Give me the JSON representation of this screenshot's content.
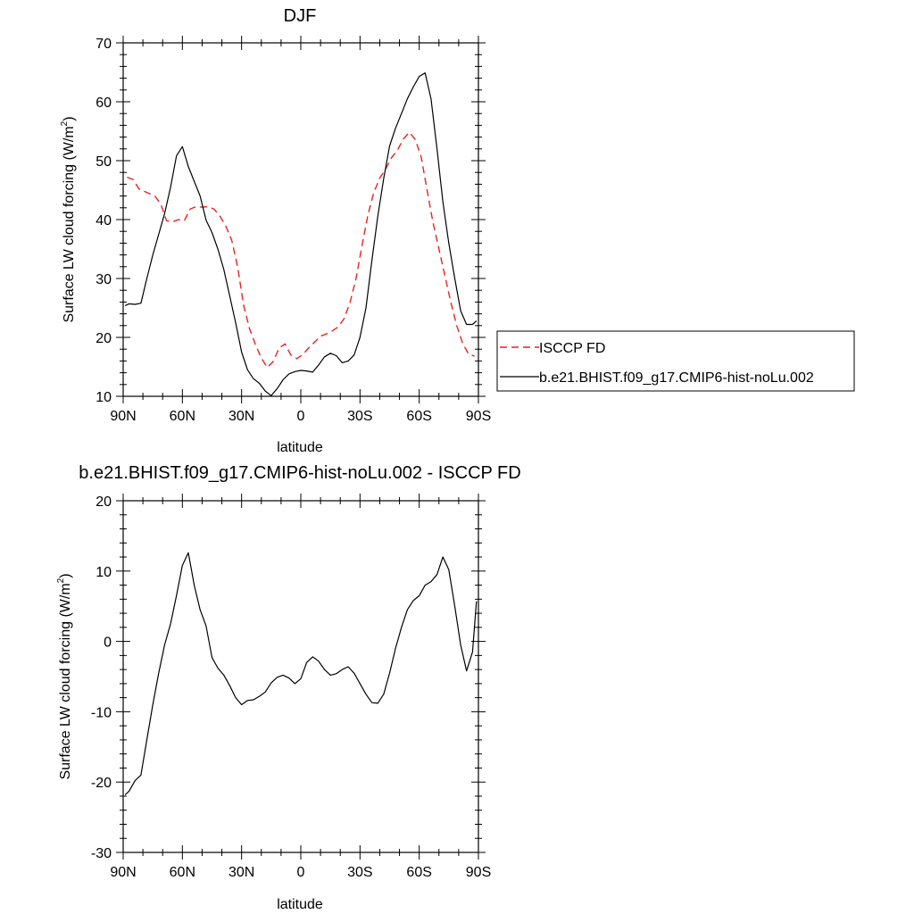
{
  "chart_data": [
    {
      "type": "line",
      "title": "DJF",
      "xlabel": "latitude",
      "ylabel_main": "Surface LW cloud forcing (W/m",
      "ylabel_sup": "2",
      "ylabel_close": ")",
      "xlim": [
        90,
        -90
      ],
      "ylim": [
        10,
        70
      ],
      "xticks": [
        90,
        60,
        30,
        0,
        -30,
        -60,
        -90
      ],
      "xtick_labels": [
        "90N",
        "60N",
        "30N",
        "0",
        "30S",
        "60S",
        "90S"
      ],
      "yticks": [
        10,
        20,
        30,
        40,
        50,
        60,
        70
      ],
      "ytick_labels": [
        "10",
        "20",
        "30",
        "40",
        "50",
        "60",
        "70"
      ],
      "legend_position": "right",
      "series": [
        {
          "name": "ISCCP FD",
          "color": "#e8231f",
          "dash": "dashed",
          "x": [
            88,
            85,
            82,
            78,
            74,
            71,
            68,
            65,
            62,
            59,
            56,
            53,
            50,
            47,
            44,
            41,
            38,
            35,
            32,
            29,
            26,
            23,
            20,
            17,
            14,
            11,
            8,
            5,
            2,
            -1,
            -4,
            -7,
            -10,
            -13,
            -16,
            -19,
            -22,
            -25,
            -28,
            -31,
            -34,
            -37,
            -40,
            -43,
            -46,
            -49,
            -52,
            -55,
            -58,
            -61,
            -64,
            -67,
            -70,
            -73,
            -76,
            -79,
            -82,
            -85,
            -88
          ],
          "values": [
            47.2,
            46.8,
            45.2,
            44.6,
            44.0,
            42.7,
            39.8,
            39.6,
            40.0,
            39.8,
            41.8,
            42.2,
            42.1,
            42.2,
            41.8,
            40.6,
            38.9,
            36.5,
            32.0,
            25.5,
            21.5,
            18.8,
            16.5,
            14.9,
            15.9,
            18.2,
            18.9,
            17.0,
            16.4,
            17.1,
            18.2,
            19.2,
            20.2,
            20.6,
            21.1,
            21.8,
            23.2,
            26.0,
            30.0,
            35.5,
            40.8,
            44.6,
            47.0,
            48.6,
            50.5,
            51.8,
            53.7,
            54.8,
            53.6,
            50.6,
            45.0,
            39.5,
            35.0,
            30.5,
            26.0,
            22.0,
            19.0,
            17.2,
            16.8
          ]
        },
        {
          "name": "b.e21.BHIST.f09_g17.CMIP6-hist-noLu.002",
          "color": "#000000",
          "dash": "solid",
          "x": [
            89,
            87,
            84,
            81,
            78,
            75,
            72,
            69,
            66,
            63,
            60,
            57,
            54,
            51,
            48,
            45,
            42,
            39,
            36,
            33,
            30,
            27,
            24,
            21,
            18,
            15,
            12,
            9,
            6,
            3,
            0,
            -3,
            -6,
            -9,
            -12,
            -15,
            -18,
            -21,
            -24,
            -27,
            -30,
            -33,
            -36,
            -39,
            -42,
            -45,
            -48,
            -51,
            -54,
            -57,
            -60,
            -63,
            -66,
            -69,
            -72,
            -75,
            -78,
            -81,
            -84,
            -87,
            -89
          ],
          "values": [
            25.4,
            25.7,
            25.6,
            25.8,
            30.0,
            34.0,
            37.5,
            41.0,
            45.5,
            50.8,
            52.4,
            49.0,
            46.5,
            44.0,
            39.9,
            37.8,
            35.0,
            31.5,
            27.0,
            22.5,
            17.5,
            14.5,
            13.0,
            12.2,
            10.9,
            10.1,
            11.3,
            12.8,
            13.8,
            14.2,
            14.4,
            14.3,
            14.1,
            15.3,
            16.7,
            17.3,
            16.9,
            15.7,
            16.0,
            17.0,
            20.0,
            25.0,
            33.0,
            40.5,
            47.0,
            52.5,
            55.5,
            58.0,
            60.5,
            62.5,
            64.3,
            64.9,
            60.5,
            52.0,
            43.0,
            36.0,
            30.0,
            24.5,
            22.2,
            22.2,
            22.8
          ]
        }
      ]
    },
    {
      "type": "line",
      "title": "b.e21.BHIST.f09_g17.CMIP6-hist-noLu.002 - ISCCP FD",
      "xlabel": "latitude",
      "ylabel_main": "Surface LW cloud forcing (W/m",
      "ylabel_sup": "2",
      "ylabel_close": ")",
      "xlim": [
        90,
        -90
      ],
      "ylim": [
        -30,
        20
      ],
      "xticks": [
        90,
        60,
        30,
        0,
        -30,
        -60,
        -90
      ],
      "xtick_labels": [
        "90N",
        "60N",
        "30N",
        "0",
        "30S",
        "60S",
        "90S"
      ],
      "yticks": [
        -30,
        -20,
        -10,
        0,
        10,
        20
      ],
      "ytick_labels": [
        "-30",
        "-20",
        "-10",
        "0",
        "10",
        "20"
      ],
      "series": [
        {
          "name": "b.e21.BHIST.f09_g17.CMIP6-hist-noLu.002 - ISCCP FD",
          "color": "#000000",
          "dash": "solid",
          "x": [
            89,
            87,
            84,
            81,
            78,
            75,
            72,
            69,
            66,
            63,
            60,
            57,
            54,
            51,
            48,
            45,
            42,
            39,
            36,
            33,
            30,
            27,
            24,
            21,
            18,
            15,
            12,
            9,
            6,
            3,
            0,
            -3,
            -6,
            -9,
            -12,
            -15,
            -18,
            -21,
            -24,
            -27,
            -30,
            -33,
            -36,
            -39,
            -42,
            -45,
            -48,
            -51,
            -54,
            -57,
            -60,
            -63,
            -66,
            -69,
            -72,
            -75,
            -78,
            -81,
            -84,
            -87,
            -89
          ],
          "values": [
            -21.8,
            -21.3,
            -19.8,
            -19.0,
            -14.0,
            -9.0,
            -4.5,
            -0.5,
            2.5,
            6.5,
            10.8,
            12.6,
            8.0,
            4.5,
            2.2,
            -2.3,
            -3.8,
            -4.8,
            -6.3,
            -8.0,
            -9.0,
            -8.4,
            -8.3,
            -7.8,
            -7.2,
            -5.9,
            -5.1,
            -4.8,
            -5.2,
            -6.0,
            -5.3,
            -3.0,
            -2.2,
            -2.8,
            -4.0,
            -4.8,
            -4.6,
            -4.0,
            -3.6,
            -4.5,
            -6.0,
            -7.5,
            -8.7,
            -8.8,
            -7.5,
            -4.5,
            -1.0,
            2.0,
            4.5,
            5.8,
            6.5,
            8.0,
            8.5,
            9.5,
            12.0,
            10.2,
            5.0,
            -0.5,
            -4.2,
            -1.5,
            5.7
          ]
        }
      ]
    }
  ]
}
